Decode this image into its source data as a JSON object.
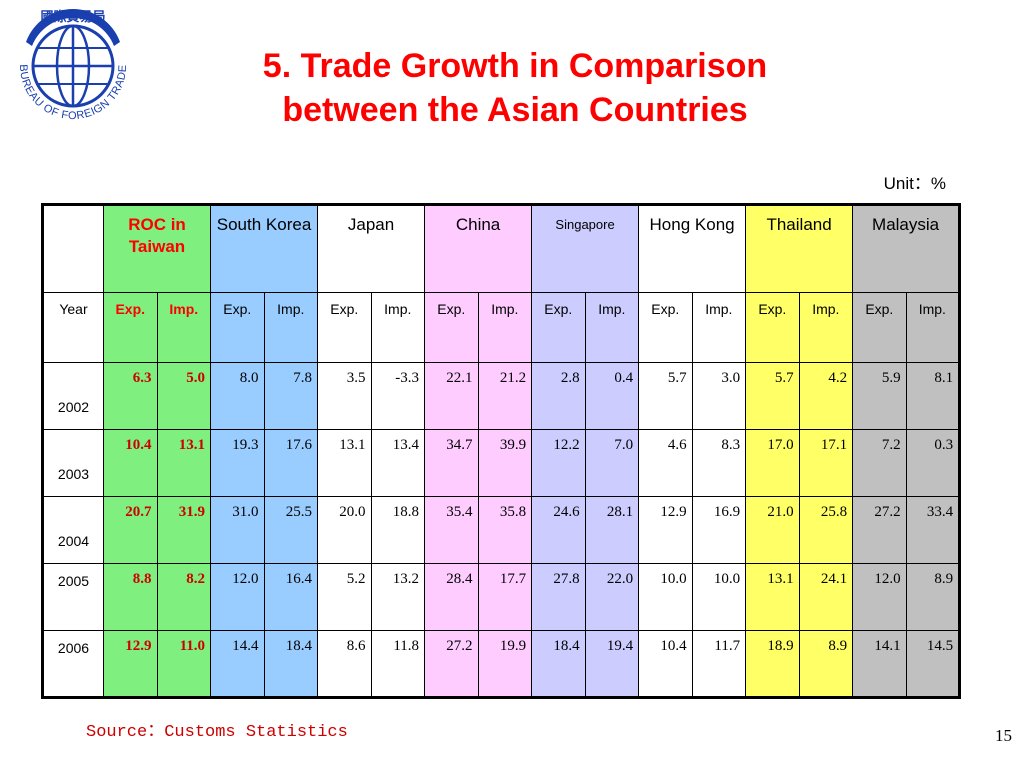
{
  "logo": {
    "text_top": "國際貿易局",
    "text_ring": "BUREAU OF FOREIGN TRADE",
    "color": "#1a3fae"
  },
  "title": {
    "line1": "5. Trade Growth in Comparison",
    "line2": "between the Asian Countries",
    "color": "#ff0000"
  },
  "unit": "Unit：%",
  "table": {
    "year_header": "Year",
    "countries": [
      {
        "name": "ROC in Taiwan",
        "color": "#7fef7f"
      },
      {
        "name": "South Korea",
        "color": "#99ccff"
      },
      {
        "name": "Japan",
        "color": "#ffffff"
      },
      {
        "name": "China",
        "color": "#ffccff"
      },
      {
        "name": "Singapore",
        "color": "#ccccff"
      },
      {
        "name": "Hong Kong",
        "color": "#ffffff"
      },
      {
        "name": "Thailand",
        "color": "#ffff66"
      },
      {
        "name": "Malaysia",
        "color": "#c0c0c0"
      }
    ],
    "exp_label": "Exp.",
    "imp_label": "Imp.",
    "rows": [
      {
        "year": "2002",
        "values": [
          "6.3",
          "5.0",
          "8.0",
          "7.8",
          "3.5",
          "-3.3",
          "22.1",
          "21.2",
          "2.8",
          "0.4",
          "5.7",
          "3.0",
          "5.7",
          "4.2",
          "5.9",
          "8.1"
        ]
      },
      {
        "year": "2003",
        "values": [
          "10.4",
          "13.1",
          "19.3",
          "17.6",
          "13.1",
          "13.4",
          "34.7",
          "39.9",
          "12.2",
          "7.0",
          "4.6",
          "8.3",
          "17.0",
          "17.1",
          "7.2",
          "0.3"
        ]
      },
      {
        "year": "2004",
        "values": [
          "20.7",
          "31.9",
          "31.0",
          "25.5",
          "20.0",
          "18.8",
          "35.4",
          "35.8",
          "24.6",
          "28.1",
          "12.9",
          "16.9",
          "21.0",
          "25.8",
          "27.2",
          "33.4"
        ]
      },
      {
        "year": "2005",
        "values": [
          "8.8",
          "8.2",
          "12.0",
          "16.4",
          "5.2",
          "13.2",
          "28.4",
          "17.7",
          "27.8",
          "22.0",
          "10.0",
          "10.0",
          "13.1",
          "24.1",
          "12.0",
          "8.9"
        ]
      },
      {
        "year": "2006",
        "values": [
          "12.9",
          "11.0",
          "14.4",
          "18.4",
          "8.6",
          "11.8",
          "27.2",
          "19.9",
          "18.4",
          "19.4",
          "10.4",
          "11.7",
          "18.9",
          "8.9",
          "14.1",
          "14.5"
        ]
      }
    ]
  },
  "source": "Source：Customs Statistics",
  "page_number": "15"
}
